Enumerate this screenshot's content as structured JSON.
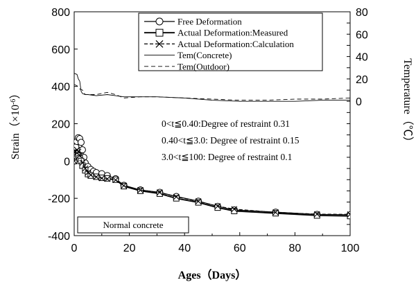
{
  "chart_data": {
    "type": "line",
    "xlabel": "Ages（Days）",
    "ylabel": "Strain（×10",
    "ylabel_exp": "-6",
    "ylabel_close": "）",
    "y2label": "Temperature（℃）",
    "xlim": [
      0,
      100
    ],
    "ylim": [
      -400,
      800
    ],
    "y2lim": [
      -120,
      80
    ],
    "xticks": [
      0,
      20,
      40,
      60,
      80,
      100
    ],
    "yticks": [
      -400,
      -200,
      0,
      200,
      400,
      600,
      800
    ],
    "y2ticks": [
      0,
      20,
      40,
      60,
      80
    ],
    "legend": [
      "Free Deformation",
      "Actual Deformation:Measured",
      "Actual Deformation:Calculation",
      "Tem(Concrete)",
      "Tem(Outdoor)"
    ],
    "annotations": [
      "0<t≦0.40:Degree of restraint 0.31",
      "0.40<t≦3.0: Degree of restraint 0.15",
      "3.0<t≦100: Degree of restraint 0.1"
    ],
    "box_label": "Normal  concrete",
    "series": [
      {
        "name": "Free Deformation",
        "axis": "left",
        "marker": "circle",
        "points": [
          [
            0,
            0
          ],
          [
            0.3,
            30
          ],
          [
            0.6,
            75
          ],
          [
            1,
            105
          ],
          [
            1.5,
            125
          ],
          [
            2,
            120
          ],
          [
            2.5,
            100
          ],
          [
            3,
            60
          ],
          [
            3.5,
            20
          ],
          [
            4,
            -10
          ],
          [
            5,
            -30
          ],
          [
            6,
            -45
          ],
          [
            7,
            -55
          ],
          [
            8,
            -62
          ],
          [
            10,
            -68
          ],
          [
            12,
            -78
          ],
          [
            15,
            -95
          ],
          [
            18,
            -130
          ],
          [
            24,
            -155
          ],
          [
            31,
            -168
          ],
          [
            37,
            -190
          ],
          [
            45,
            -215
          ],
          [
            52,
            -243
          ],
          [
            58,
            -262
          ],
          [
            73,
            -274
          ],
          [
            88,
            -286
          ],
          [
            100,
            -288
          ]
        ]
      },
      {
        "name": "Actual Deformation:Measured",
        "axis": "left",
        "marker": "square",
        "points": [
          [
            0,
            0
          ],
          [
            0.5,
            20
          ],
          [
            1,
            40
          ],
          [
            1.5,
            30
          ],
          [
            2,
            15
          ],
          [
            2.5,
            0
          ],
          [
            3,
            -25
          ],
          [
            4,
            -50
          ],
          [
            5,
            -70
          ],
          [
            6,
            -78
          ],
          [
            8,
            -84
          ],
          [
            10,
            -90
          ],
          [
            12,
            -93
          ],
          [
            15,
            -100
          ],
          [
            18,
            -135
          ],
          [
            24,
            -160
          ],
          [
            31,
            -175
          ],
          [
            37,
            -200
          ],
          [
            45,
            -222
          ],
          [
            52,
            -250
          ],
          [
            58,
            -268
          ],
          [
            73,
            -280
          ],
          [
            88,
            -292
          ],
          [
            100,
            -295
          ]
        ]
      },
      {
        "name": "Actual Deformation:Calculation",
        "axis": "left",
        "marker": "x",
        "points": [
          [
            0,
            0
          ],
          [
            0.5,
            50
          ],
          [
            1,
            60
          ],
          [
            1.5,
            50
          ],
          [
            2,
            30
          ],
          [
            3,
            -10
          ],
          [
            4,
            -40
          ],
          [
            5,
            -62
          ],
          [
            6,
            -75
          ],
          [
            8,
            -85
          ],
          [
            10,
            -92
          ],
          [
            12,
            -96
          ],
          [
            15,
            -102
          ],
          [
            18,
            -132
          ],
          [
            24,
            -156
          ],
          [
            31,
            -168
          ],
          [
            37,
            -192
          ],
          [
            45,
            -216
          ],
          [
            52,
            -242
          ],
          [
            58,
            -258
          ],
          [
            73,
            -275
          ],
          [
            88,
            -285
          ],
          [
            100,
            -286
          ]
        ]
      },
      {
        "name": "Tem(Concrete)",
        "axis": "right",
        "points": [
          [
            0,
            25
          ],
          [
            1,
            24
          ],
          [
            1.5,
            20
          ],
          [
            2,
            18
          ],
          [
            2.5,
            9
          ],
          [
            3,
            7
          ],
          [
            4,
            6
          ],
          [
            5,
            6
          ],
          [
            8,
            5
          ],
          [
            12,
            6
          ],
          [
            15,
            5
          ],
          [
            18,
            4
          ],
          [
            24,
            4
          ],
          [
            30,
            4
          ],
          [
            40,
            3
          ],
          [
            50,
            1
          ],
          [
            60,
            0
          ],
          [
            70,
            0
          ],
          [
            80,
            0
          ],
          [
            90,
            1
          ],
          [
            100,
            1
          ]
        ]
      },
      {
        "name": "Tem(Outdoor)",
        "axis": "right",
        "points": [
          [
            0,
            15
          ],
          [
            1,
            14
          ],
          [
            2,
            11
          ],
          [
            3,
            10
          ],
          [
            4,
            6
          ],
          [
            5,
            6
          ],
          [
            8,
            6
          ],
          [
            10,
            7
          ],
          [
            12,
            8
          ],
          [
            15,
            6
          ],
          [
            18,
            3
          ],
          [
            24,
            4
          ],
          [
            30,
            4
          ],
          [
            40,
            3
          ],
          [
            50,
            2
          ],
          [
            60,
            1
          ],
          [
            70,
            1
          ],
          [
            80,
            2
          ],
          [
            90,
            2
          ],
          [
            100,
            3
          ]
        ]
      }
    ]
  }
}
